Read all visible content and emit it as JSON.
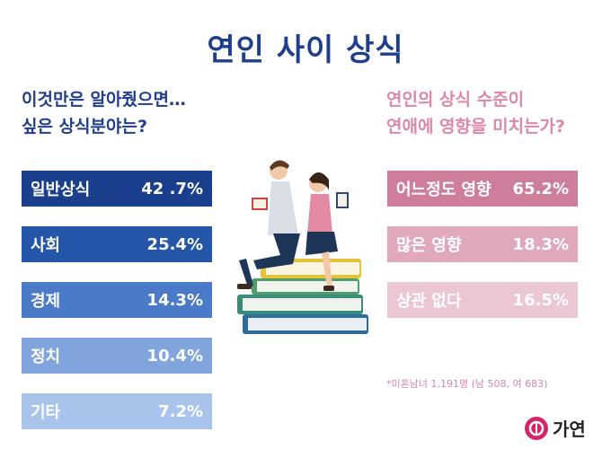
{
  "title": "연인 사이 상식",
  "left_question": {
    "line1": "이것만은 알아줬으면…",
    "line2": "싶은 상식분야는?"
  },
  "right_question": {
    "line1": "연인의 상식 수준이",
    "line2": "연애에 영향을 미치는가?"
  },
  "footnote": "*미혼남녀 1,191명 (남 508, 여 683)",
  "logo": {
    "text": "가연",
    "icon": "gayeon-logo-icon"
  },
  "colors": {
    "title": "#1f3f8a",
    "left_bars": [
      "#1a3f8c",
      "#2355a8",
      "#4a7ac8",
      "#7fa5dc",
      "#a9c4eb"
    ],
    "right_bars": [
      "#cf7d9d",
      "#e0a8bd",
      "#ebc6d3"
    ],
    "right_question": "#dd88a8"
  },
  "chart_data": [
    {
      "type": "bar",
      "categories": [
        "일반상식",
        "사회",
        "경제",
        "정치",
        "기타"
      ],
      "values": [
        42.7,
        25.4,
        14.3,
        10.4,
        7.2
      ],
      "value_labels": [
        "42 .7%",
        "25.4%",
        "14.3%",
        "10.4%",
        "7.2%"
      ],
      "title": "이것만은 알아줬으면… 싶은 상식분야는?"
    },
    {
      "type": "bar",
      "categories": [
        "어느정도 영향",
        "많은 영향",
        "상관 없다"
      ],
      "values": [
        65.2,
        18.3,
        16.5
      ],
      "value_labels": [
        "65.2%",
        "18.3%",
        "16.5%"
      ],
      "title": "연인의 상식 수준이 연애에 영향을 미치는가?"
    }
  ]
}
